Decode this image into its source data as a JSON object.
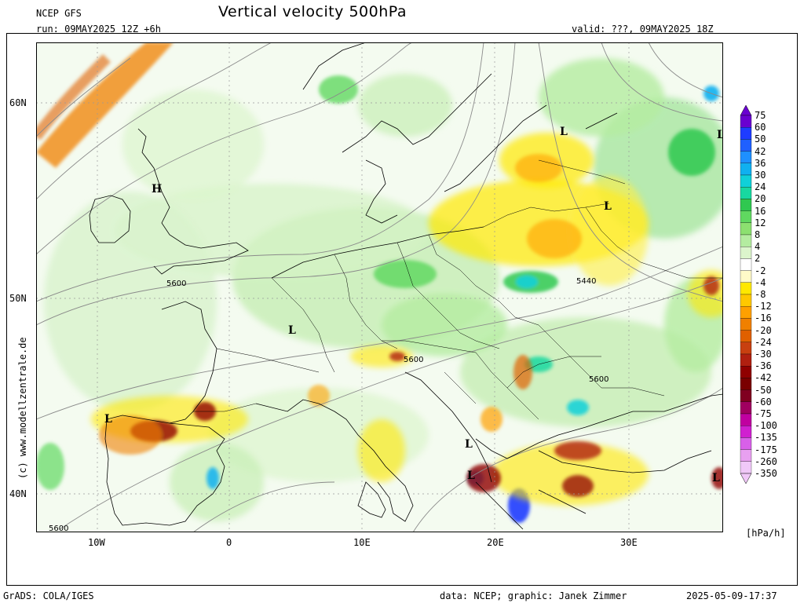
{
  "header": {
    "model": "NCEP GFS",
    "run": "run: 09MAY2025 12Z +6h",
    "title": "Vertical velocity 500hPa",
    "valid": "valid: ???, 09MAY2025 18Z"
  },
  "axes": {
    "lat_labels": [
      "60N",
      "50N",
      "40N"
    ],
    "lon_labels": [
      "10W",
      "0",
      "10E",
      "20E",
      "30E"
    ]
  },
  "map": {
    "pressure_labels": [
      "L",
      "L",
      "L",
      "L",
      "L",
      "L",
      "L",
      "L",
      "H"
    ],
    "contour_labels": [
      "5600",
      "5440",
      "5600",
      "5600",
      "5600"
    ]
  },
  "colorbar": {
    "unit": "[hPa/h]",
    "levels": [
      "75",
      "60",
      "50",
      "42",
      "36",
      "30",
      "24",
      "20",
      "16",
      "12",
      "8",
      "4",
      "2",
      "-2",
      "-4",
      "-8",
      "-12",
      "-16",
      "-20",
      "-24",
      "-30",
      "-36",
      "-42",
      "-50",
      "-60",
      "-75",
      "-100",
      "-135",
      "-175",
      "-260",
      "-350"
    ],
    "colors": [
      "#6a00d0",
      "#1e3cff",
      "#2060ff",
      "#1e90ff",
      "#10b0f0",
      "#10d0d8",
      "#18d8a0",
      "#30c850",
      "#60d860",
      "#8ce070",
      "#b4eca0",
      "#dcf5cc",
      "#ffffff",
      "#fffac8",
      "#ffe800",
      "#ffc800",
      "#ffa000",
      "#f08000",
      "#e06000",
      "#c84010",
      "#b02010",
      "#900000",
      "#7a0000",
      "#800020",
      "#a00060",
      "#c000a0",
      "#d020d0",
      "#d860e8",
      "#e8a0f0",
      "#f0c8f8"
    ]
  },
  "footer": {
    "left": "GrADS: COLA/IGES",
    "credit": "data: NCEP; graphic: Janek Zimmer",
    "timestamp": "2025-05-09-17:37"
  },
  "copyright": "(c) www.modellzentrale.de"
}
